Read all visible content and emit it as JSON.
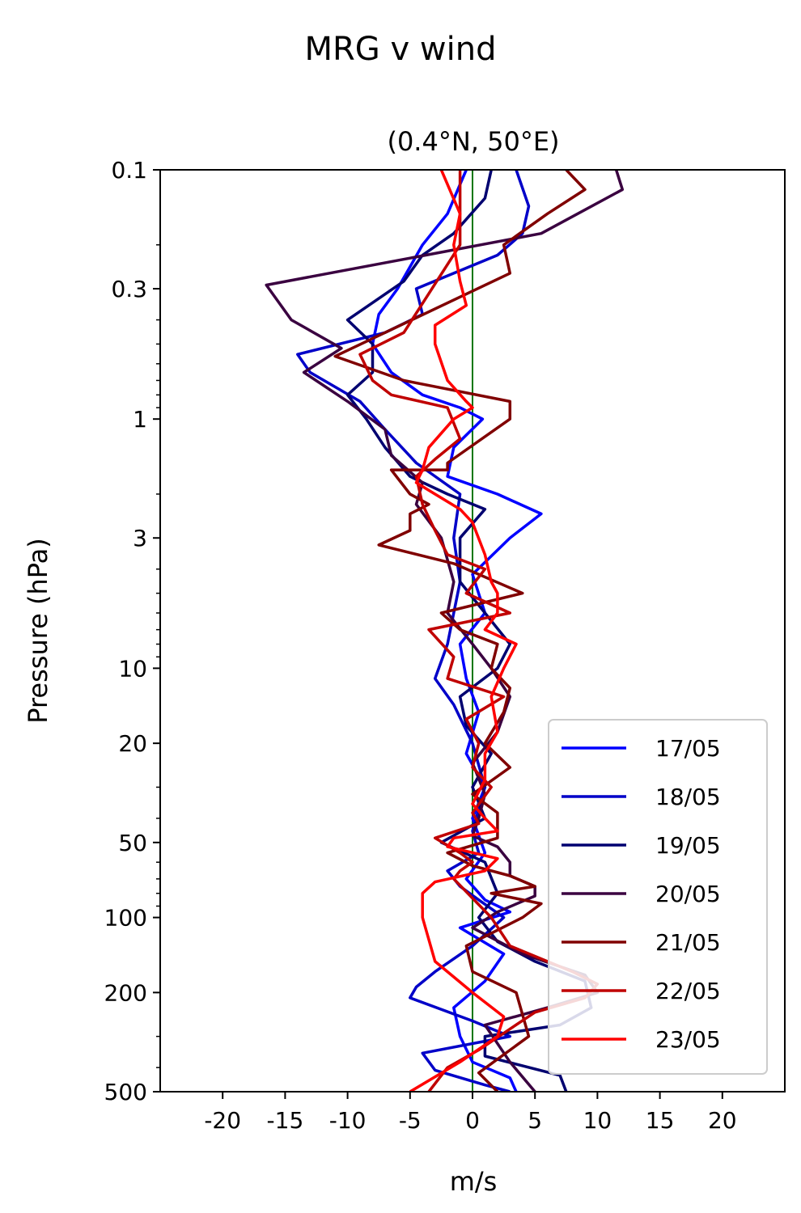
{
  "suptitle": "MRG v wind",
  "title": "(0.4°N, 50°E)",
  "chart_data": {
    "type": "line",
    "xlabel": "m/s",
    "ylabel": "Pressure (hPa)",
    "xlim": [
      -25,
      25
    ],
    "ylim": [
      500,
      0.1
    ],
    "yscale": "log",
    "x_ticks": [
      -20,
      -15,
      -10,
      -5,
      0,
      5,
      10,
      15,
      20
    ],
    "x_tick_labels": [
      "-20",
      "-15",
      "-10",
      "-5",
      "0",
      "5",
      "10",
      "15",
      "20"
    ],
    "y_ticks": [
      0.1,
      0.3,
      1,
      3,
      10,
      20,
      50,
      100,
      200,
      500
    ],
    "y_tick_labels": [
      "0.1",
      "0.3",
      "1",
      "3",
      "10",
      "20",
      "50",
      "100",
      "200",
      "500"
    ],
    "zero_line_color": "#007700",
    "legend_position": "lower right",
    "series": [
      {
        "name": "17/05",
        "color": "#0000ff",
        "x": [
          -0.5,
          -2,
          -4,
          -6,
          -7.5,
          -8,
          -6.5,
          -4,
          -1,
          0.8,
          -1.5,
          -2,
          2,
          5.5,
          3,
          0,
          1,
          -1,
          -0.5,
          0.5,
          -0.5,
          1,
          0,
          1,
          -0.5,
          1,
          3,
          -1,
          2.5,
          1,
          -1.5,
          -1,
          0,
          3,
          3.5
        ],
        "y": [
          0.1,
          0.15,
          0.2,
          0.3,
          0.38,
          0.5,
          0.65,
          0.8,
          0.9,
          1.0,
          1.3,
          1.7,
          2.0,
          2.4,
          3.0,
          4.2,
          6,
          8,
          11,
          15,
          22,
          30,
          40,
          55,
          70,
          85,
          95,
          110,
          140,
          180,
          230,
          300,
          380,
          440,
          500
        ]
      },
      {
        "name": "18/05",
        "color": "#0000c8",
        "x": [
          3.5,
          4.5,
          4,
          2,
          -4.5,
          -4,
          -7,
          -14,
          -13,
          -9,
          -7,
          -4.5,
          -1,
          -1.5,
          -1,
          -1.5,
          -2,
          -3,
          -1.5,
          0,
          1,
          0,
          0.5,
          -2,
          -1,
          0.5,
          2.5,
          0,
          -3,
          -4.5,
          -5,
          0,
          3,
          -4,
          -3,
          1,
          3
        ],
        "y": [
          0.1,
          0.14,
          0.18,
          0.22,
          0.3,
          0.38,
          0.45,
          0.55,
          0.65,
          0.85,
          1.1,
          1.5,
          2.0,
          3.0,
          4.5,
          6,
          8,
          11,
          14,
          20,
          30,
          45,
          55,
          65,
          75,
          85,
          100,
          130,
          165,
          190,
          210,
          260,
          300,
          350,
          410,
          470,
          500
        ]
      },
      {
        "name": "19/05",
        "color": "#000070",
        "x": [
          1.5,
          1,
          -1.5,
          -4,
          -5.5,
          -10,
          -8,
          -8,
          -10,
          -8.5,
          -7,
          -5,
          -2,
          1,
          -1,
          -1,
          1,
          3,
          2,
          -1,
          -0.5,
          1.5,
          0,
          1,
          -2.5,
          1,
          2,
          0.5,
          2,
          5,
          9,
          9.5,
          7,
          1,
          1,
          7,
          7.5
        ],
        "y": [
          0.1,
          0.13,
          0.18,
          0.22,
          0.28,
          0.4,
          0.5,
          0.65,
          0.8,
          1.0,
          1.3,
          1.7,
          2.0,
          2.3,
          3.0,
          4.5,
          6,
          8,
          10,
          13,
          17,
          22,
          30,
          40,
          50,
          60,
          80,
          100,
          125,
          150,
          180,
          230,
          270,
          300,
          360,
          430,
          500
        ]
      },
      {
        "name": "20/05",
        "color": "#3a0040",
        "x": [
          11.5,
          12,
          5.5,
          -16.5,
          -14.5,
          -10.5,
          -13.5,
          -10,
          -7,
          -6.5,
          -4,
          -4.5,
          -2.5,
          -1.5,
          -2,
          0,
          1.5,
          3,
          2,
          0,
          1,
          0.5,
          0,
          2,
          3,
          3,
          5,
          5,
          2,
          0,
          4,
          9,
          10,
          6,
          1,
          3,
          5
        ],
        "y": [
          0.1,
          0.12,
          0.18,
          0.29,
          0.4,
          0.52,
          0.65,
          0.85,
          1.1,
          1.4,
          1.8,
          2.2,
          3.0,
          4.5,
          6,
          8,
          10,
          13,
          18,
          24,
          32,
          40,
          47,
          52,
          60,
          68,
          75,
          82,
          95,
          110,
          140,
          170,
          200,
          230,
          270,
          380,
          500
        ]
      },
      {
        "name": "21/05",
        "color": "#800000",
        "x": [
          7.5,
          9,
          6,
          2.5,
          3,
          -11,
          -5.5,
          3,
          3,
          -2,
          -2,
          -6.5,
          -5,
          -3.5,
          -5,
          -5,
          -7.5,
          -1.5,
          4,
          -2.5,
          -1,
          2,
          1.5,
          3,
          2.5,
          1,
          3,
          0,
          2,
          2,
          -2,
          0,
          3,
          5,
          1.5,
          5.5,
          4,
          -0.5,
          0,
          3.5,
          4.5,
          0.5,
          2
        ],
        "y": [
          0.1,
          0.12,
          0.15,
          0.2,
          0.26,
          0.56,
          0.7,
          0.85,
          1.0,
          1.5,
          1.6,
          1.6,
          2.0,
          2.2,
          2.4,
          2.8,
          3.2,
          3.8,
          5,
          6,
          7,
          8,
          10,
          12,
          15,
          20,
          25,
          32,
          38,
          48,
          55,
          62,
          68,
          75,
          80,
          88,
          100,
          130,
          165,
          200,
          300,
          420,
          500
        ]
      },
      {
        "name": "22/05",
        "color": "#c00000",
        "x": [
          -1,
          -1,
          -5.5,
          -9,
          -8,
          -6.5,
          -2,
          -1,
          -3,
          -4.5,
          -4,
          -3,
          -2,
          1,
          -0.5,
          3,
          -3.5,
          -1.5,
          -2,
          2.5,
          -0.5,
          0.5,
          0,
          1.5,
          0,
          0.5,
          -3,
          -1,
          0,
          -1,
          -1.5,
          1.5,
          3,
          6,
          8,
          10,
          9,
          5,
          3,
          0.5,
          -2,
          -3.5
        ],
        "y": [
          0.1,
          0.2,
          0.45,
          0.55,
          0.7,
          0.8,
          0.9,
          1.2,
          1.45,
          1.7,
          2.2,
          2.8,
          3.5,
          4,
          5,
          6,
          7,
          9,
          11,
          13,
          16,
          20,
          25,
          30,
          38,
          42,
          48,
          55,
          60,
          65,
          70,
          100,
          130,
          150,
          165,
          185,
          210,
          240,
          280,
          340,
          400,
          500
        ]
      },
      {
        "name": "23/05",
        "color": "#ff0000",
        "x": [
          -2.5,
          -1,
          -1.5,
          -1,
          -0.5,
          -3,
          -3,
          -2,
          -0.5,
          0,
          -1.5,
          -3.5,
          -4,
          -4.5,
          -3,
          -1,
          0,
          1,
          1.5,
          2,
          2,
          1,
          3.5,
          2.5,
          1.5,
          2,
          1,
          1,
          0,
          1,
          2,
          -1.5,
          -2,
          2,
          1,
          -3,
          -4,
          -4,
          -3,
          0,
          2.5,
          2,
          -1,
          -5
        ],
        "y": [
          0.1,
          0.15,
          0.2,
          0.28,
          0.35,
          0.42,
          0.5,
          0.7,
          0.85,
          0.9,
          1.0,
          1.3,
          1.6,
          1.8,
          2.0,
          2.3,
          2.6,
          3.5,
          4.5,
          5,
          6,
          7,
          8,
          10,
          13,
          18,
          22,
          28,
          35,
          40,
          45,
          48,
          52,
          58,
          65,
          72,
          80,
          100,
          150,
          200,
          250,
          300,
          380,
          500
        ]
      }
    ]
  }
}
